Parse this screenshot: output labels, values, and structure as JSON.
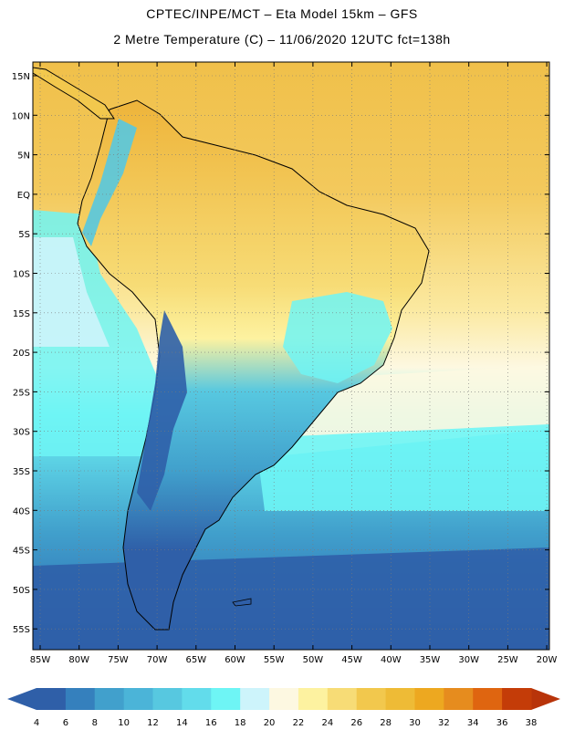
{
  "header": {
    "title_line1": "CPTEC/INPE/MCT –  Eta Model 15km – GFS",
    "title_line2": "2 Metre Temperature (C) – 11/06/2020 12UTC fct=138h"
  },
  "map": {
    "lat_labels": [
      "15N",
      "10N",
      "5N",
      "EQ",
      "5S",
      "10S",
      "15S",
      "20S",
      "25S",
      "30S",
      "35S",
      "40S",
      "45S",
      "50S",
      "55S"
    ],
    "lon_labels": [
      "85W",
      "80W",
      "75W",
      "70W",
      "65W",
      "60W",
      "55W",
      "50W",
      "45W",
      "40W",
      "35W",
      "30W",
      "25W",
      "20W"
    ],
    "gridlines": "dotted"
  },
  "colorbar": {
    "labels": [
      "4",
      "6",
      "8",
      "10",
      "12",
      "14",
      "16",
      "18",
      "20",
      "22",
      "24",
      "26",
      "28",
      "30",
      "32",
      "34",
      "36",
      "38"
    ],
    "colors": [
      "#2f5fa8",
      "#3580bd",
      "#41a0cc",
      "#4bb4d8",
      "#57c8e0",
      "#62dceb",
      "#6ef5f5",
      "#cdf4fb",
      "#fdf8e1",
      "#fdf2a0",
      "#f7dc76",
      "#f2c84d",
      "#eebb36",
      "#eda820",
      "#e68c1e",
      "#df6510",
      "#c43c08"
    ],
    "under_color": "#2f5fa8",
    "over_color": "#b8340a"
  }
}
